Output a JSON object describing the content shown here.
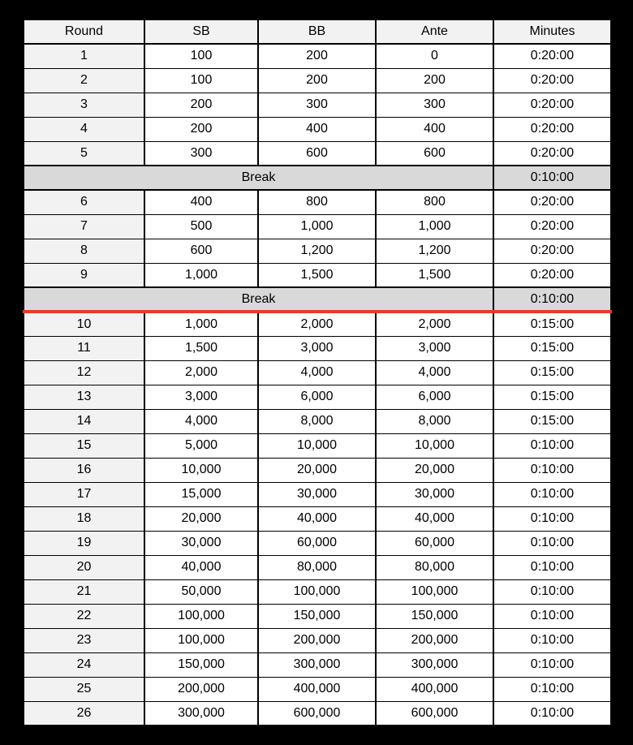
{
  "table": {
    "columns": [
      "Round",
      "SB",
      "BB",
      "Ante",
      "Minutes"
    ],
    "rows": [
      {
        "type": "level",
        "round": "1",
        "sb": "100",
        "bb": "200",
        "ante": "0",
        "minutes": "0:20:00"
      },
      {
        "type": "level",
        "round": "2",
        "sb": "100",
        "bb": "200",
        "ante": "200",
        "minutes": "0:20:00"
      },
      {
        "type": "level",
        "round": "3",
        "sb": "200",
        "bb": "300",
        "ante": "300",
        "minutes": "0:20:00"
      },
      {
        "type": "level",
        "round": "4",
        "sb": "200",
        "bb": "400",
        "ante": "400",
        "minutes": "0:20:00"
      },
      {
        "type": "level",
        "round": "5",
        "sb": "300",
        "bb": "600",
        "ante": "600",
        "minutes": "0:20:00"
      },
      {
        "type": "break",
        "label": "Break",
        "minutes": "0:10:00",
        "highlight": false
      },
      {
        "type": "level",
        "round": "6",
        "sb": "400",
        "bb": "800",
        "ante": "800",
        "minutes": "0:20:00"
      },
      {
        "type": "level",
        "round": "7",
        "sb": "500",
        "bb": "1,000",
        "ante": "1,000",
        "minutes": "0:20:00"
      },
      {
        "type": "level",
        "round": "8",
        "sb": "600",
        "bb": "1,200",
        "ante": "1,200",
        "minutes": "0:20:00"
      },
      {
        "type": "level",
        "round": "9",
        "sb": "1,000",
        "bb": "1,500",
        "ante": "1,500",
        "minutes": "0:20:00"
      },
      {
        "type": "break",
        "label": "Break",
        "minutes": "0:10:00",
        "highlight": true
      },
      {
        "type": "level",
        "round": "10",
        "sb": "1,000",
        "bb": "2,000",
        "ante": "2,000",
        "minutes": "0:15:00"
      },
      {
        "type": "level",
        "round": "11",
        "sb": "1,500",
        "bb": "3,000",
        "ante": "3,000",
        "minutes": "0:15:00"
      },
      {
        "type": "level",
        "round": "12",
        "sb": "2,000",
        "bb": "4,000",
        "ante": "4,000",
        "minutes": "0:15:00"
      },
      {
        "type": "level",
        "round": "13",
        "sb": "3,000",
        "bb": "6,000",
        "ante": "6,000",
        "minutes": "0:15:00"
      },
      {
        "type": "level",
        "round": "14",
        "sb": "4,000",
        "bb": "8,000",
        "ante": "8,000",
        "minutes": "0:15:00"
      },
      {
        "type": "level",
        "round": "15",
        "sb": "5,000",
        "bb": "10,000",
        "ante": "10,000",
        "minutes": "0:10:00"
      },
      {
        "type": "level",
        "round": "16",
        "sb": "10,000",
        "bb": "20,000",
        "ante": "20,000",
        "minutes": "0:10:00"
      },
      {
        "type": "level",
        "round": "17",
        "sb": "15,000",
        "bb": "30,000",
        "ante": "30,000",
        "minutes": "0:10:00"
      },
      {
        "type": "level",
        "round": "18",
        "sb": "20,000",
        "bb": "40,000",
        "ante": "40,000",
        "minutes": "0:10:00"
      },
      {
        "type": "level",
        "round": "19",
        "sb": "30,000",
        "bb": "60,000",
        "ante": "60,000",
        "minutes": "0:10:00"
      },
      {
        "type": "level",
        "round": "20",
        "sb": "40,000",
        "bb": "80,000",
        "ante": "80,000",
        "minutes": "0:10:00"
      },
      {
        "type": "level",
        "round": "21",
        "sb": "50,000",
        "bb": "100,000",
        "ante": "100,000",
        "minutes": "0:10:00"
      },
      {
        "type": "level",
        "round": "22",
        "sb": "100,000",
        "bb": "150,000",
        "ante": "150,000",
        "minutes": "0:10:00"
      },
      {
        "type": "level",
        "round": "23",
        "sb": "100,000",
        "bb": "200,000",
        "ante": "200,000",
        "minutes": "0:10:00"
      },
      {
        "type": "level",
        "round": "24",
        "sb": "150,000",
        "bb": "300,000",
        "ante": "300,000",
        "minutes": "0:10:00"
      },
      {
        "type": "level",
        "round": "25",
        "sb": "200,000",
        "bb": "400,000",
        "ante": "400,000",
        "minutes": "0:10:00"
      },
      {
        "type": "level",
        "round": "26",
        "sb": "300,000",
        "bb": "600,000",
        "ante": "600,000",
        "minutes": "0:10:00"
      }
    ],
    "colors": {
      "page_bg": "#000000",
      "header_bg": "#f2f2f2",
      "round_col_bg": "#f2f2f2",
      "cell_bg": "#ffffff",
      "break_bg": "#d9d9d9",
      "border": "#000000",
      "current_level_line": "#e53a2b"
    }
  }
}
